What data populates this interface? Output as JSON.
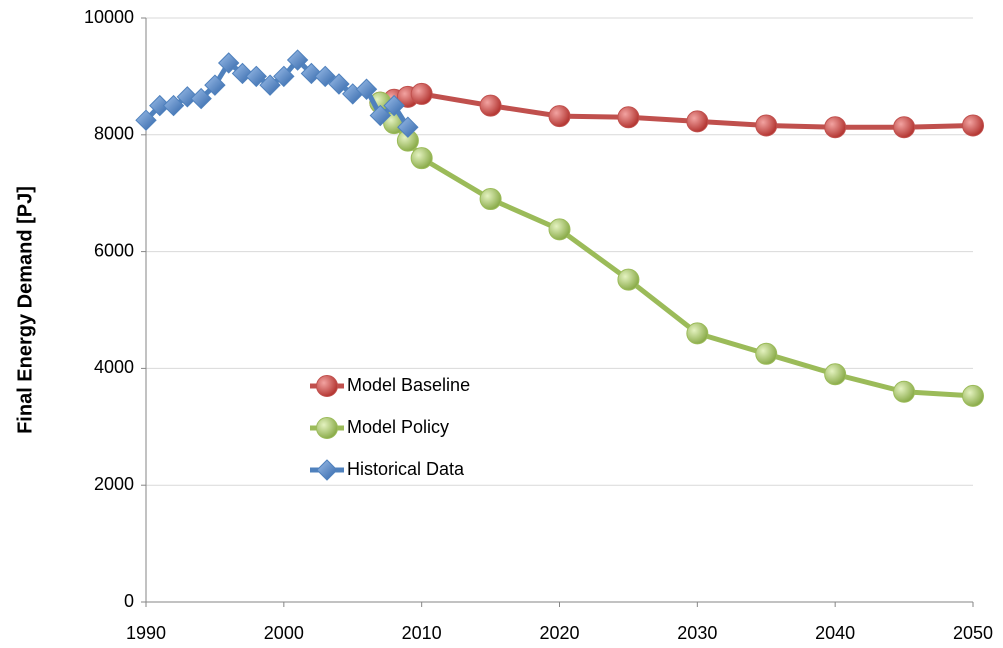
{
  "chart_data": {
    "type": "line",
    "y_label": "Final Energy Demand [PJ]",
    "xlim": [
      1990,
      2050
    ],
    "xticks": [
      1990,
      2000,
      2010,
      2020,
      2030,
      2040,
      2050
    ],
    "ylim": [
      0,
      10000
    ],
    "yticks": [
      0,
      2000,
      4000,
      6000,
      8000,
      10000
    ],
    "grid": true,
    "legend": "inside-lower-left",
    "series": [
      {
        "name": "Model Baseline",
        "color": "#c0504d",
        "marker": "circle",
        "x": [
          2007,
          2008,
          2009,
          2010,
          2015,
          2020,
          2025,
          2030,
          2035,
          2040,
          2045,
          2050
        ],
        "values": [
          8550,
          8600,
          8650,
          8700,
          8500,
          8320,
          8300,
          8230,
          8160,
          8130,
          8130,
          8160
        ]
      },
      {
        "name": "Model Policy",
        "color": "#9bbb59",
        "marker": "circle",
        "x": [
          2007,
          2008,
          2009,
          2010,
          2015,
          2020,
          2025,
          2030,
          2035,
          2040,
          2045,
          2050
        ],
        "values": [
          8550,
          8200,
          7900,
          7600,
          6900,
          6380,
          5520,
          4600,
          4250,
          3900,
          3600,
          3530
        ]
      },
      {
        "name": "Historical Data",
        "color": "#4f81bd",
        "marker": "diamond",
        "x": [
          1990,
          1991,
          1992,
          1993,
          1994,
          1995,
          1996,
          1997,
          1998,
          1999,
          2000,
          2001,
          2002,
          2003,
          2004,
          2005,
          2006,
          2007,
          2008,
          2009
        ],
        "values": [
          8250,
          8500,
          8500,
          8650,
          8620,
          8850,
          9230,
          9050,
          9000,
          8850,
          9000,
          9280,
          9050,
          9000,
          8870,
          8700,
          8780,
          8330,
          8500,
          8130
        ]
      }
    ]
  }
}
